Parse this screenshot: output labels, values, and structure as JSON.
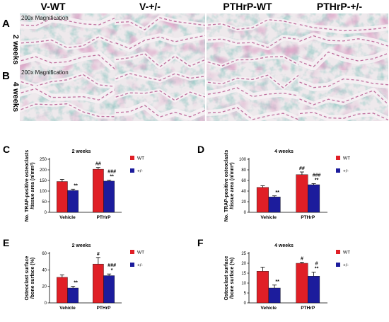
{
  "colors": {
    "wt": "#e01f26",
    "het": "#1c1c9c",
    "stain_pink": "#b24f88",
    "stain_teal": "#5f9f9a",
    "bone_bg": "#eee9ec"
  },
  "micrographs": {
    "columns": [
      "V-WT",
      "V-+/-",
      "PTHrP-WT",
      "PTHrP-+/-"
    ],
    "rows": [
      {
        "letter": "A",
        "label": "2 weeks",
        "magnification": "200x Magnification"
      },
      {
        "letter": "B",
        "label": "4 weeks",
        "magnification": "200x Magnification"
      }
    ]
  },
  "chart_data": [
    {
      "panel": "C",
      "type": "bar",
      "title": "2 weeks",
      "ylabel": [
        "No. TRAP-positive osteoclasts",
        "/tissue area (n/mm²)"
      ],
      "categories": [
        "Vehicle",
        "PTHrP"
      ],
      "ylim": [
        0,
        250
      ],
      "yticks": [
        0,
        50,
        100,
        150,
        200,
        250
      ],
      "legend": [
        "WT",
        "+/-"
      ],
      "series": [
        {
          "name": "WT",
          "values": [
            145,
            203
          ],
          "errors": [
            10,
            8
          ],
          "labels": [
            "",
            "##"
          ]
        },
        {
          "name": "+/-",
          "values": [
            103,
            147
          ],
          "errors": [
            6,
            4
          ],
          "labels": [
            "**",
            "###\n**"
          ]
        }
      ]
    },
    {
      "panel": "D",
      "type": "bar",
      "title": "4 weeks",
      "ylabel": [
        "No. TRAP-positive osteoclasts",
        "/tissue area (n/mm²)"
      ],
      "categories": [
        "Vehicle",
        "PTHrP"
      ],
      "ylim": [
        0,
        100
      ],
      "yticks": [
        0,
        20,
        40,
        60,
        80,
        100
      ],
      "legend": [
        "WT",
        "+/-"
      ],
      "series": [
        {
          "name": "WT",
          "values": [
            47,
            71
          ],
          "errors": [
            3,
            5
          ],
          "labels": [
            "",
            "##"
          ]
        },
        {
          "name": "+/-",
          "values": [
            29,
            52
          ],
          "errors": [
            2,
            2
          ],
          "labels": [
            "**",
            "###\n**"
          ]
        }
      ]
    },
    {
      "panel": "E",
      "type": "bar",
      "title": "2 weeks",
      "ylabel": [
        "Osteoclast surface",
        "/bone surface (%)"
      ],
      "categories": [
        "Vehicle",
        "PTHrP"
      ],
      "ylim": [
        0,
        60
      ],
      "yticks": [
        0,
        20,
        40,
        60
      ],
      "legend": [
        "WT",
        "+/-"
      ],
      "series": [
        {
          "name": "WT",
          "values": [
            31,
            47
          ],
          "errors": [
            3,
            8
          ],
          "labels": [
            "",
            "#"
          ]
        },
        {
          "name": "+/-",
          "values": [
            18,
            33
          ],
          "errors": [
            2,
            2
          ],
          "labels": [
            "**",
            "###\n*"
          ]
        }
      ]
    },
    {
      "panel": "F",
      "type": "bar",
      "title": "4 weeks",
      "ylabel": [
        "Osteoclast surface",
        "/bone surface (%)"
      ],
      "categories": [
        "Vehicle",
        "PTHrP"
      ],
      "ylim": [
        0,
        25
      ],
      "yticks": [
        0,
        5,
        10,
        15,
        20,
        25
      ],
      "legend": [
        "WT",
        "+/-"
      ],
      "series": [
        {
          "name": "WT",
          "values": [
            16,
            20
          ],
          "errors": [
            2,
            0.5
          ],
          "labels": [
            "",
            "#"
          ]
        },
        {
          "name": "+/-",
          "values": [
            7.5,
            13.5
          ],
          "errors": [
            1.5,
            2
          ],
          "labels": [
            "**",
            "#\n**"
          ]
        }
      ]
    }
  ]
}
